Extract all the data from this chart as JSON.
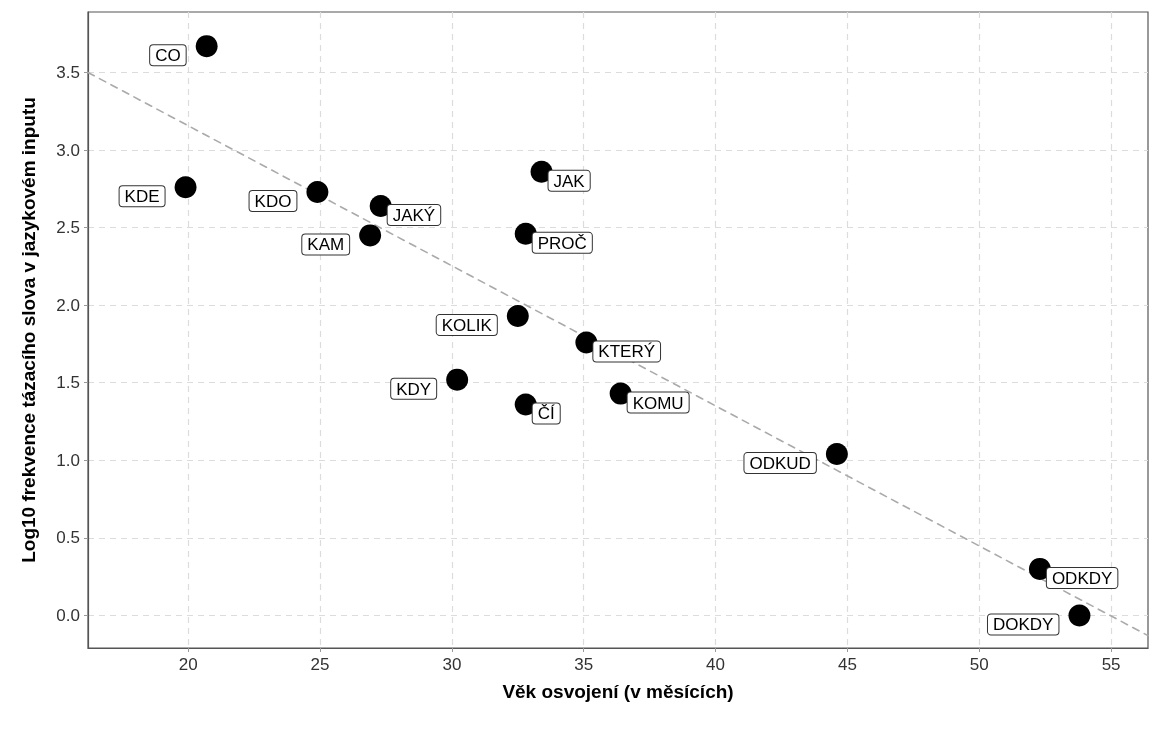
{
  "chart_data": {
    "type": "scatter",
    "xlabel": "Věk osvojení (v měsících)",
    "ylabel": "Log10 frekvence tázacího slova v jazykovém inputu",
    "xlim": [
      16.2,
      56.4
    ],
    "xticks": [
      20,
      25,
      30,
      35,
      40,
      45,
      50,
      55
    ],
    "ylim": [
      -0.21,
      3.89
    ],
    "yticks": [
      {
        "value": 0,
        "label": "0.0"
      },
      0.5,
      {
        "value": 1,
        "label": "1.0"
      },
      1.5,
      {
        "value": 2,
        "label": "2.0"
      },
      2.5,
      {
        "value": 3,
        "label": "3.0"
      },
      3.5
    ],
    "grid": true,
    "series": [
      {
        "type": "line",
        "color": "#aaaaaa",
        "line_style": "dashed",
        "marker": "none",
        "x": [
          16.2,
          56.4
        ],
        "values": [
          3.5,
          -0.13
        ]
      },
      {
        "color": "#000000",
        "marker": "circle",
        "x": [
          20.7,
          19.9,
          24.9,
          27.3,
          26.9,
          33.4,
          32.8,
          32.5,
          35.1,
          30.2,
          32.8,
          36.4,
          44.6,
          52.3,
          53.8
        ],
        "values": [
          3.67,
          2.76,
          2.73,
          2.64,
          2.45,
          2.86,
          2.46,
          1.93,
          1.76,
          1.52,
          1.36,
          1.43,
          1.04,
          0.3,
          0.0
        ],
        "value_labels": [
          "CO",
          "KDE",
          "KDO",
          "JAKÝ",
          "KAM",
          "JAK",
          "PROČ",
          "KOLIK",
          "KTERÝ",
          "KDY",
          "ČÍ",
          "KOMU",
          "ODKUD",
          "ODKDY",
          "DOKDY"
        ]
      }
    ]
  }
}
